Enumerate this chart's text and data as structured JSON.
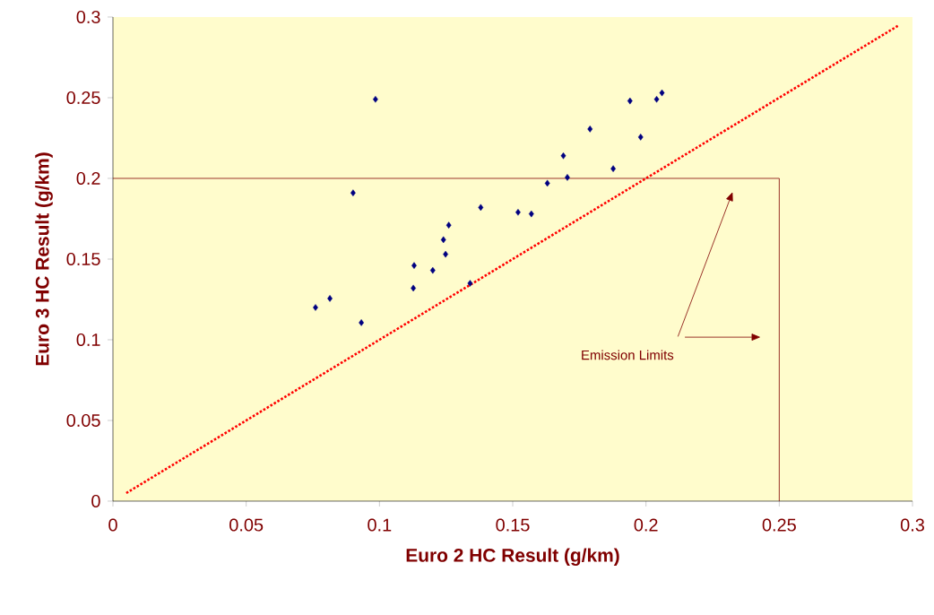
{
  "chart_data": {
    "type": "scatter",
    "xlabel": "Euro 2 HC Result (g/km)",
    "ylabel": "Euro 3 HC Result (g/km)",
    "x": [
      0.076,
      0.0814,
      0.0901,
      0.0932,
      0.0985,
      0.113,
      0.1127,
      0.12,
      0.124,
      0.1248,
      0.126,
      0.134,
      0.138,
      0.152,
      0.157,
      0.163,
      0.169,
      0.1705,
      0.179,
      0.1877,
      0.194,
      0.198,
      0.204,
      0.206
    ],
    "series": [
      {
        "color": "#000080",
        "marker": "diamond",
        "values": [
          0.12,
          0.1256,
          0.191,
          0.1106,
          0.249,
          0.146,
          0.132,
          0.143,
          0.162,
          0.153,
          0.171,
          0.135,
          0.182,
          0.179,
          0.178,
          0.197,
          0.214,
          0.2006,
          0.2306,
          0.206,
          0.248,
          0.2256,
          0.249,
          0.253
        ]
      },
      {
        "type": "line",
        "color": "#ff0000",
        "line_style": "dotted",
        "marker": "none",
        "x": [
          0.005,
          0.295
        ],
        "values": [
          0.005,
          0.295
        ]
      }
    ],
    "ref_lines": [
      {
        "axis": "y",
        "value": 0.2,
        "label": null,
        "color": "#800000"
      },
      {
        "axis": "x",
        "value": 0.25,
        "label": "Emission Limits",
        "color": "#800000"
      }
    ],
    "xlim": [
      0,
      0.3
    ],
    "ylim": [
      0,
      0.3
    ],
    "xticks": [
      0,
      0.05,
      0.1,
      0.15,
      0.2,
      0.25,
      0.3
    ],
    "yticks": [
      0,
      0.05,
      0.1,
      0.15,
      0.2,
      0.25,
      0.3
    ],
    "grid": false
  }
}
